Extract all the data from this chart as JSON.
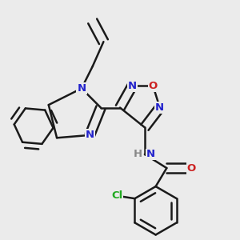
{
  "background_color": "#ebebeb",
  "bond_color": "#1a1a1a",
  "bond_width": 1.8,
  "colors": {
    "N": "#2222cc",
    "O": "#cc2222",
    "Cl": "#22aa22",
    "H": "#888888"
  },
  "fs": 9.5
}
